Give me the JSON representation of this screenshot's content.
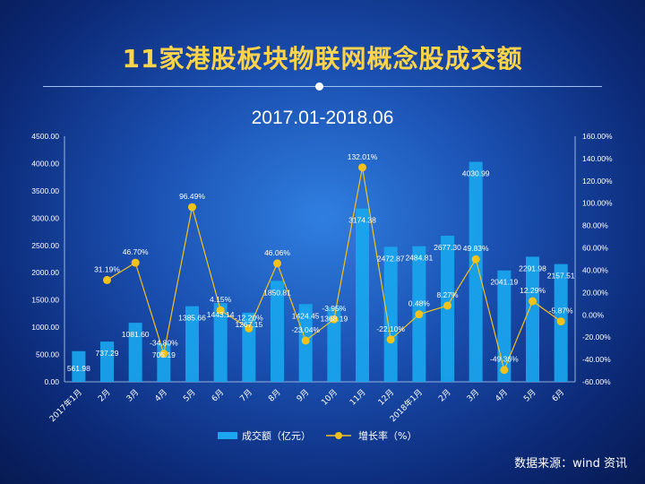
{
  "title": "11家港股板块物联网概念股成交额",
  "subtitle": "2017.01-2018.06",
  "source": "数据来源：wind 资讯",
  "colors": {
    "bar": "#1aa7ef",
    "line": "#f5c21b",
    "axis_text": "#ffffff"
  },
  "chart_data": {
    "type": "bar",
    "categories": [
      "2017年1月",
      "2月",
      "3月",
      "4月",
      "5月",
      "6月",
      "7月",
      "8月",
      "9月",
      "10月",
      "11月",
      "12月",
      "2018年1月",
      "2月",
      "3月",
      "4月",
      "5月",
      "6月"
    ],
    "series": [
      {
        "name": "成交额（亿元）",
        "type": "bar",
        "axis": "left",
        "values": [
          561.98,
          737.29,
          1081.6,
          705.19,
          1385.66,
          1443.14,
          1267.15,
          1850.81,
          1424.45,
          1368.19,
          3174.38,
          2472.87,
          2484.81,
          2677.3,
          4030.99,
          2041.19,
          2291.98,
          2157.51
        ],
        "labels": [
          "561.98",
          "737.29",
          "1081.60",
          "705.19",
          "1385.66",
          "1443.14",
          "1267.15",
          "1850.81",
          "1424.45",
          "1368.19",
          "3174.38",
          "2472.87",
          "2484.81",
          "2677.30",
          "4030.99",
          "2041.19",
          "2291.98",
          "2157.51"
        ]
      },
      {
        "name": "增长率（%）",
        "type": "line",
        "axis": "right",
        "values": [
          null,
          31.19,
          46.7,
          -34.8,
          96.49,
          4.15,
          -12.2,
          46.06,
          -23.04,
          -3.95,
          132.01,
          -22.1,
          0.48,
          8.27,
          49.83,
          -49.36,
          12.29,
          -5.87
        ],
        "labels": [
          "",
          "31.19%",
          "46.70%",
          "-34.80%",
          "96.49%",
          "4.15%",
          "-12.20%",
          "46.06%",
          "-23.04%",
          "-3.95%",
          "132.01%",
          "-22.10%",
          "0.48%",
          "8.27%",
          "49.83%",
          "-49.36%",
          "12.29%",
          "-5.87%"
        ]
      }
    ],
    "y_left": {
      "range": [
        0,
        4500
      ],
      "ticks": [
        "0.00",
        "500.00",
        "1000.00",
        "1500.00",
        "2000.00",
        "2500.00",
        "3000.00",
        "3500.00",
        "4000.00",
        "4500.00"
      ]
    },
    "y_right": {
      "range": [
        -60,
        160
      ],
      "ticks": [
        "-60.00%",
        "-40.00%",
        "-20.00%",
        "0.00%",
        "20.00%",
        "40.00%",
        "60.00%",
        "80.00%",
        "100.00%",
        "120.00%",
        "140.00%",
        "160.00%"
      ]
    },
    "legend_position": "bottom",
    "grid": false
  }
}
